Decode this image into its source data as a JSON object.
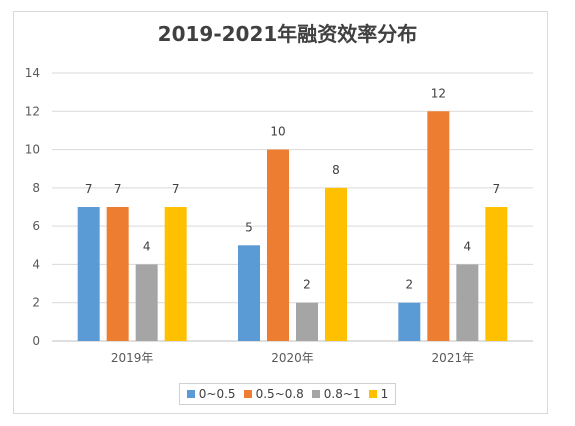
{
  "chart_data": {
    "type": "bar",
    "title": "2019-2021年融资效率分布",
    "categories": [
      "2019年",
      "2020年",
      "2021年"
    ],
    "series": [
      {
        "name": "0~0.5",
        "color": "#5b9bd5",
        "values": [
          7,
          5,
          2
        ]
      },
      {
        "name": "0.5~0.8",
        "color": "#ed7d31",
        "values": [
          7,
          10,
          12
        ]
      },
      {
        "name": "0.8~1",
        "color": "#a5a5a5",
        "values": [
          4,
          2,
          4
        ]
      },
      {
        "name": "1",
        "color": "#ffc000",
        "values": [
          7,
          8,
          7
        ]
      }
    ],
    "ylim": [
      0,
      14
    ],
    "yticks": [
      0,
      2,
      4,
      6,
      8,
      10,
      12,
      14
    ],
    "grid": true,
    "legend_position": "bottom",
    "data_labels": true
  }
}
